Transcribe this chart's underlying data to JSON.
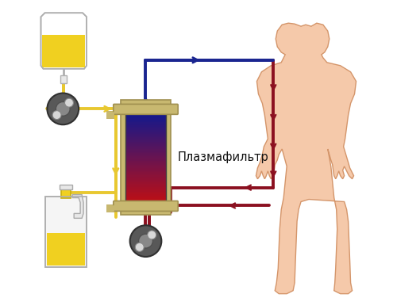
{
  "label_plasmafilter": "Плазмафильтр",
  "bg_color": "#ffffff",
  "body_color": "#f5c9aa",
  "body_outline": "#d4956a",
  "yellow_line_color": "#e8c830",
  "blue_line_color": "#1a2590",
  "red_line_color": "#8b1020",
  "filter_blue_top": "#1a2a8a",
  "filter_red_bot": "#b02020",
  "filter_cap_color": "#c8b870",
  "filter_cap_outline": "#a09050",
  "pump_outer": "#606060",
  "pump_inner": "#909090",
  "pump_roller": "#c0c0c0",
  "iv_liquid": "#f0d020",
  "bottle_liquid": "#f0d020"
}
